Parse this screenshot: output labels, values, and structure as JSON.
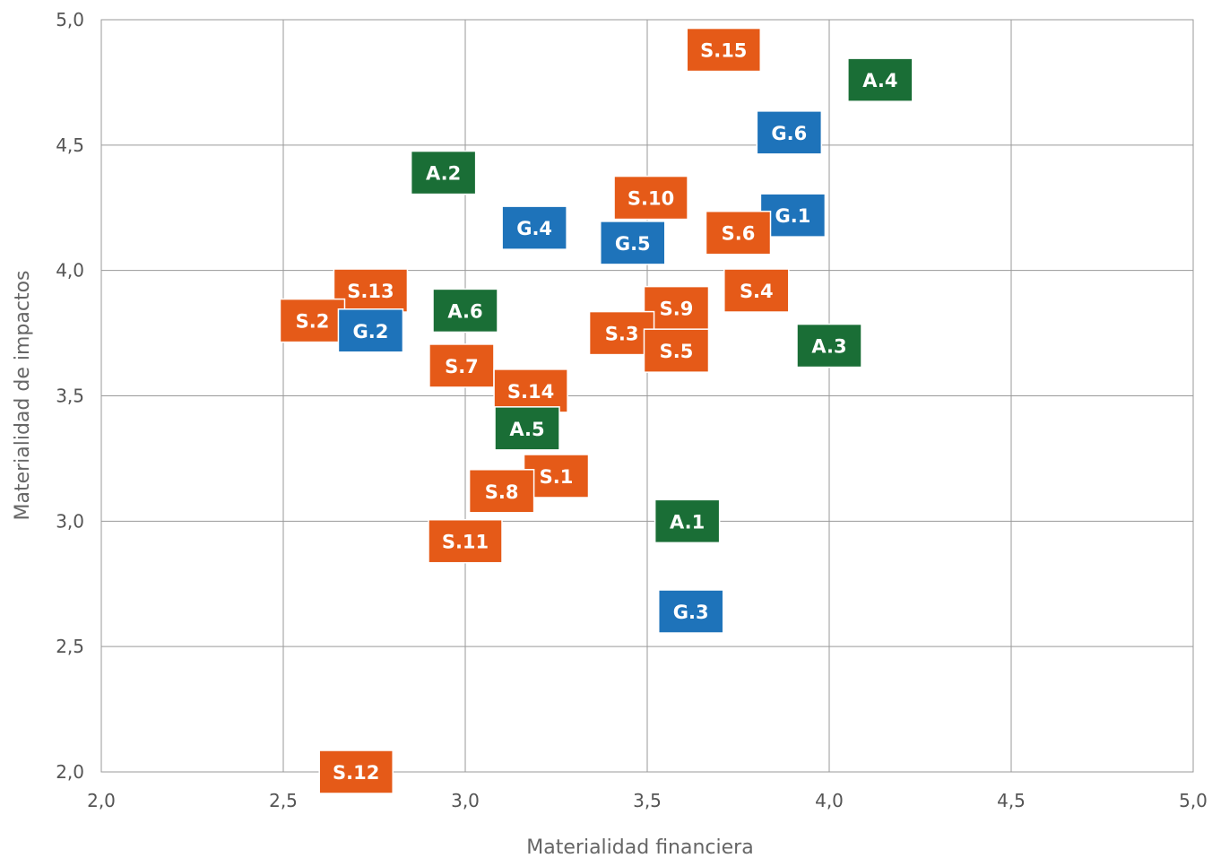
{
  "chart_data": {
    "type": "scatter",
    "xlabel": "Materialidad financiera",
    "ylabel": "Materialidad de impactos",
    "xlim": [
      2.0,
      5.0
    ],
    "ylim": [
      2.0,
      5.0
    ],
    "x_ticks": [
      "2,0",
      "2,5",
      "3,0",
      "3,5",
      "4,0",
      "4,5",
      "5,0"
    ],
    "y_ticks": [
      "2,0",
      "2,5",
      "3,0",
      "3,5",
      "4,0",
      "4,5",
      "5,0"
    ],
    "grid": true,
    "colors": {
      "S": "#E55A18",
      "A": "#1A6E36",
      "G": "#1E73BA"
    },
    "points": [
      {
        "label": "S.15",
        "group": "S",
        "x": 3.71,
        "y": 4.88
      },
      {
        "label": "A.4",
        "group": "A",
        "x": 4.14,
        "y": 4.76
      },
      {
        "label": "G.6",
        "group": "G",
        "x": 3.89,
        "y": 4.55
      },
      {
        "label": "A.2",
        "group": "A",
        "x": 2.94,
        "y": 4.39
      },
      {
        "label": "S.10",
        "group": "S",
        "x": 3.51,
        "y": 4.29
      },
      {
        "label": "G.1",
        "group": "G",
        "x": 3.9,
        "y": 4.22
      },
      {
        "label": "G.4",
        "group": "G",
        "x": 3.19,
        "y": 4.17
      },
      {
        "label": "S.6",
        "group": "S",
        "x": 3.75,
        "y": 4.15
      },
      {
        "label": "G.5",
        "group": "G",
        "x": 3.46,
        "y": 4.11
      },
      {
        "label": "S.4",
        "group": "S",
        "x": 3.8,
        "y": 3.92
      },
      {
        "label": "S.13",
        "group": "S",
        "x": 2.74,
        "y": 3.92
      },
      {
        "label": "S.9",
        "group": "S",
        "x": 3.58,
        "y": 3.85
      },
      {
        "label": "A.6",
        "group": "A",
        "x": 3.0,
        "y": 3.84
      },
      {
        "label": "S.2",
        "group": "S",
        "x": 2.58,
        "y": 3.8
      },
      {
        "label": "G.2",
        "group": "G",
        "x": 2.74,
        "y": 3.76
      },
      {
        "label": "S.3",
        "group": "S",
        "x": 3.43,
        "y": 3.75
      },
      {
        "label": "A.3",
        "group": "A",
        "x": 4.0,
        "y": 3.7
      },
      {
        "label": "S.5",
        "group": "S",
        "x": 3.58,
        "y": 3.68
      },
      {
        "label": "S.7",
        "group": "S",
        "x": 2.99,
        "y": 3.62
      },
      {
        "label": "S.14",
        "group": "S",
        "x": 3.18,
        "y": 3.52
      },
      {
        "label": "A.5",
        "group": "A",
        "x": 3.17,
        "y": 3.37
      },
      {
        "label": "S.1",
        "group": "S",
        "x": 3.25,
        "y": 3.18
      },
      {
        "label": "S.8",
        "group": "S",
        "x": 3.1,
        "y": 3.12
      },
      {
        "label": "A.1",
        "group": "A",
        "x": 3.61,
        "y": 3.0
      },
      {
        "label": "S.11",
        "group": "S",
        "x": 3.0,
        "y": 2.92
      },
      {
        "label": "G.3",
        "group": "G",
        "x": 3.62,
        "y": 2.64
      },
      {
        "label": "S.12",
        "group": "S",
        "x": 2.7,
        "y": 2.0
      }
    ]
  }
}
